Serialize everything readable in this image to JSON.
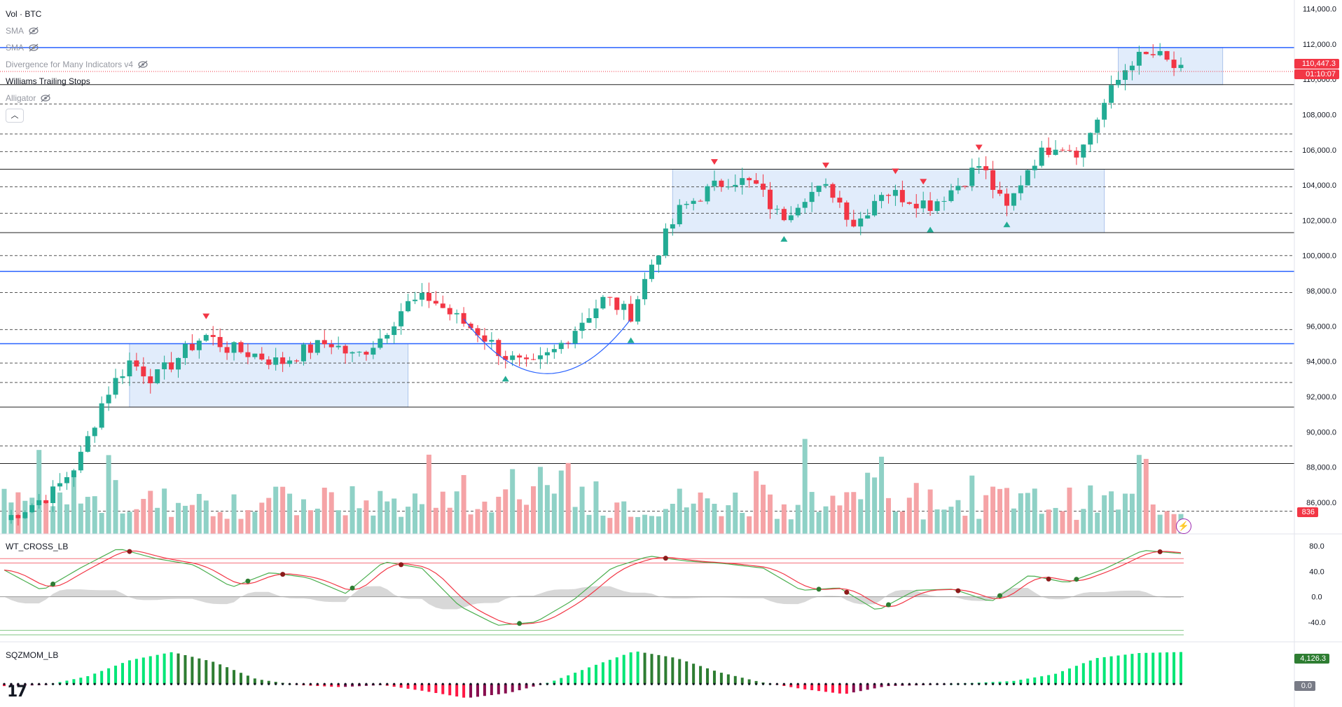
{
  "legend": {
    "items": [
      {
        "label": "Vol · BTC",
        "hidden": false
      },
      {
        "label": "SMA",
        "hidden": true
      },
      {
        "label": "SMA",
        "hidden": true
      },
      {
        "label": "Divergence for Many Indicators v4",
        "hidden": true
      },
      {
        "label": "Williams Trailing Stops",
        "hidden": false
      },
      {
        "label": "Alligator",
        "hidden": true
      }
    ],
    "collapse_icon": "chevron-up-icon"
  },
  "price_axis": {
    "ticks": [
      "114,000.0",
      "112,000.0",
      "110,000.0",
      "108,000.0",
      "106,000.0",
      "104,000.0",
      "102,000.0",
      "100,000.0",
      "98,000.0",
      "96,000.0",
      "94,000.0",
      "92,000.0",
      "90,000.0",
      "88,000.0",
      "86,000.0"
    ],
    "current_price": "110,447.3",
    "countdown": "01:10:07",
    "volume_tag": "836"
  },
  "wt_pane": {
    "title": "WT_CROSS_LB",
    "ticks": [
      "80.0",
      "40.0",
      "0.0",
      "-40.0"
    ]
  },
  "sqz_pane": {
    "title": "SQZMOM_LB",
    "value_tag": "4,126.3",
    "zero_tag": "0.0"
  },
  "colors": {
    "up": "#22ab94",
    "down": "#f23645",
    "vol_up": "#8fd1c6",
    "vol_down": "#f5a3a6",
    "box": "#dce9fb",
    "blue_line": "#2962ff",
    "countdown_bg": "#f23645",
    "sqz_tag_bg": "#2e7d32",
    "zero_tag_bg": "#787b86"
  },
  "chart_data": {
    "type": "candlestick",
    "price_range": [
      84500,
      114500
    ],
    "horizontal_levels": {
      "blue": [
        111800,
        99100,
        95000
      ],
      "black": [
        109700,
        104900,
        101300,
        91400,
        88200
      ],
      "dashed": [
        108600,
        106900,
        105900,
        103900,
        102400,
        100000,
        97900,
        95800,
        93900,
        92800,
        89200,
        85500
      ]
    },
    "ranges": [
      {
        "from_candle": 0,
        "to_candle": 1,
        "low": 91400,
        "high": 95000
      },
      {
        "from_candle": 2,
        "to_candle": 3,
        "low": 101300,
        "high": 104900
      },
      {
        "from_candle": 4,
        "to_candle": 5,
        "low": 109700,
        "high": 111800
      }
    ],
    "anchor_points": [
      {
        "price": 85000
      },
      {
        "price": 85800
      },
      {
        "price": 86600
      },
      {
        "price": 88400
      },
      {
        "price": 92000
      },
      {
        "price": 94000
      },
      {
        "price": 93000
      },
      {
        "price": 94300
      },
      {
        "price": 95500
      },
      {
        "price": 94700
      },
      {
        "price": 94400
      },
      {
        "price": 93900
      },
      {
        "price": 94600
      },
      {
        "price": 95100
      },
      {
        "price": 94200
      },
      {
        "price": 95300
      },
      {
        "price": 97200
      },
      {
        "price": 97600
      },
      {
        "price": 96500
      },
      {
        "price": 95600
      },
      {
        "price": 94300
      },
      {
        "price": 93600
      },
      {
        "price": 94600
      },
      {
        "price": 96200
      },
      {
        "price": 97600
      },
      {
        "price": 96600
      },
      {
        "price": 100000
      },
      {
        "price": 102600
      },
      {
        "price": 103600
      },
      {
        "price": 104400
      },
      {
        "price": 104000
      },
      {
        "price": 102100
      },
      {
        "price": 103500
      },
      {
        "price": 103800
      },
      {
        "price": 101700
      },
      {
        "price": 103700
      },
      {
        "price": 103300
      },
      {
        "price": 102900
      },
      {
        "price": 103900
      },
      {
        "price": 105200
      },
      {
        "price": 102500
      },
      {
        "price": 105300
      },
      {
        "price": 106400
      },
      {
        "price": 105900
      },
      {
        "price": 108800
      },
      {
        "price": 111100
      },
      {
        "price": 111400
      },
      {
        "price": 110400
      }
    ],
    "wt_range": [
      -60,
      90
    ],
    "wt_levels": [
      60,
      53,
      -53,
      -60
    ],
    "wt1_anchor": [
      {
        "v": 42
      },
      {
        "v": 10
      },
      {
        "v": 45
      },
      {
        "v": 76
      },
      {
        "v": 60
      },
      {
        "v": 50
      },
      {
        "v": 15
      },
      {
        "v": 38
      },
      {
        "v": 30
      },
      {
        "v": 5
      },
      {
        "v": 55
      },
      {
        "v": 45
      },
      {
        "v": -15
      },
      {
        "v": -45
      },
      {
        "v": -40
      },
      {
        "v": -5
      },
      {
        "v": 45
      },
      {
        "v": 64
      },
      {
        "v": 56
      },
      {
        "v": 52
      },
      {
        "v": 45
      },
      {
        "v": 10
      },
      {
        "v": 14
      },
      {
        "v": -22
      },
      {
        "v": 10
      },
      {
        "v": 12
      },
      {
        "v": -8
      },
      {
        "v": 34
      },
      {
        "v": 22
      },
      {
        "v": 44
      },
      {
        "v": 73
      },
      {
        "v": 68
      }
    ],
    "sqz_anchor": [
      {
        "v": -200
      },
      {
        "v": -100
      },
      {
        "v": 800
      },
      {
        "v": 2400
      },
      {
        "v": 3200
      },
      {
        "v": 2200
      },
      {
        "v": 500
      },
      {
        "v": -100
      },
      {
        "v": -300
      },
      {
        "v": -100
      },
      {
        "v": -700
      },
      {
        "v": -1400
      },
      {
        "v": -900
      },
      {
        "v": 200
      },
      {
        "v": 1800
      },
      {
        "v": 3300
      },
      {
        "v": 2600
      },
      {
        "v": 1200
      },
      {
        "v": 200
      },
      {
        "v": -500
      },
      {
        "v": -1000
      },
      {
        "v": -200
      },
      {
        "v": -100
      },
      {
        "v": 100
      },
      {
        "v": 300
      },
      {
        "v": 1000
      },
      {
        "v": 2600
      },
      {
        "v": 3100
      },
      {
        "v": 3200
      }
    ],
    "sqz_range": [
      -1800,
      3800
    ]
  }
}
